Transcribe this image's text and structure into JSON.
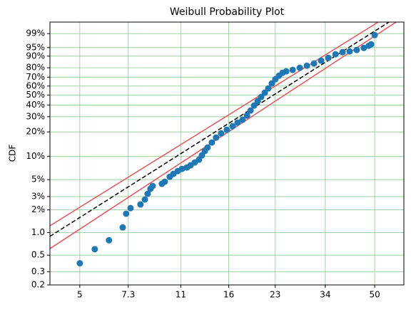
{
  "chart_data": {
    "type": "scatter",
    "title": "Weibull Probability Plot",
    "y_label": "CDF",
    "xscale": "log",
    "yscale": "weibull",
    "grid": true,
    "grid_color": "#8cc98c",
    "color": "#1f77b4",
    "xlim": [
      3.96,
      62.8
    ],
    "ylim": [
      0.2,
      99.86
    ],
    "xticks": [
      5,
      7.3,
      11,
      16,
      23,
      34,
      50
    ],
    "yticks": [
      0.2,
      0.3,
      0.5,
      {
        "value": 1,
        "label": "1.0"
      },
      {
        "value": 2,
        "label": "2%"
      },
      {
        "value": 3,
        "label": "3%"
      },
      {
        "value": 5,
        "label": "5%"
      },
      {
        "value": 10,
        "label": "10%"
      },
      {
        "value": 20,
        "label": "20%"
      },
      {
        "value": 30,
        "label": "30%"
      },
      {
        "value": 40,
        "label": "40%"
      },
      {
        "value": 50,
        "label": "50%"
      },
      {
        "value": 60,
        "label": "60%"
      },
      {
        "value": 70,
        "label": "70%"
      },
      {
        "value": 80,
        "label": "80%"
      },
      {
        "value": 90,
        "label": "90%"
      },
      {
        "value": 95,
        "label": "95%"
      },
      {
        "value": 99,
        "label": "99%"
      }
    ],
    "x": [
      5.0,
      5.62,
      6.28,
      6.99,
      7.18,
      7.43,
      8.03,
      8.31,
      8.49,
      8.68,
      8.83,
      9.49,
      9.71,
      10.09,
      10.38,
      10.74,
      11.1,
      11.54,
      11.87,
      12.27,
      12.68,
      12.97,
      13.27,
      13.55,
      14.02,
      14.49,
      15.07,
      15.76,
      16.49,
      17.14,
      17.82,
      18.45,
      18.97,
      19.5,
      20.05,
      20.61,
      21.19,
      21.78,
      22.39,
      23.02,
      23.69,
      24.36,
      25.05,
      26.35,
      27.86,
      29.45,
      31.13,
      32.91,
      34.83,
      36.81,
      38.91,
      41.12,
      43.46,
      45.94,
      47.75,
      48.64,
      50.0
    ],
    "values": [
      0.39,
      0.6,
      0.79,
      1.17,
      1.78,
      2.11,
      2.36,
      2.74,
      3.26,
      3.79,
      4.13,
      4.41,
      4.7,
      5.45,
      5.94,
      6.46,
      6.89,
      7.19,
      7.66,
      8.33,
      9.05,
      10.26,
      11.63,
      12.87,
      14.85,
      17.08,
      19.24,
      21.21,
      23.37,
      25.7,
      27.7,
      30.91,
      35.03,
      39.51,
      43.65,
      47.99,
      52.57,
      57.28,
      62.92,
      67.73,
      71.69,
      74.79,
      76.33,
      77.8,
      79.93,
      82.02,
      84.01,
      86.49,
      88.74,
      91.27,
      92.6,
      93.02,
      93.81,
      94.86,
      95.81,
      96.36,
      98.78
    ],
    "lines": [
      {
        "color": "#e05558",
        "dashed": false,
        "x": [
          3.96,
          51.4
        ],
        "values": [
          1.23,
          99.86
        ]
      },
      {
        "color": "#e05558",
        "dashed": false,
        "x": [
          3.96,
          59.1
        ],
        "values": [
          0.61,
          99.86
        ]
      },
      {
        "color": "#000000",
        "dashed": true,
        "x": [
          3.96,
          55.9
        ],
        "values": [
          0.89,
          99.86
        ]
      }
    ]
  }
}
